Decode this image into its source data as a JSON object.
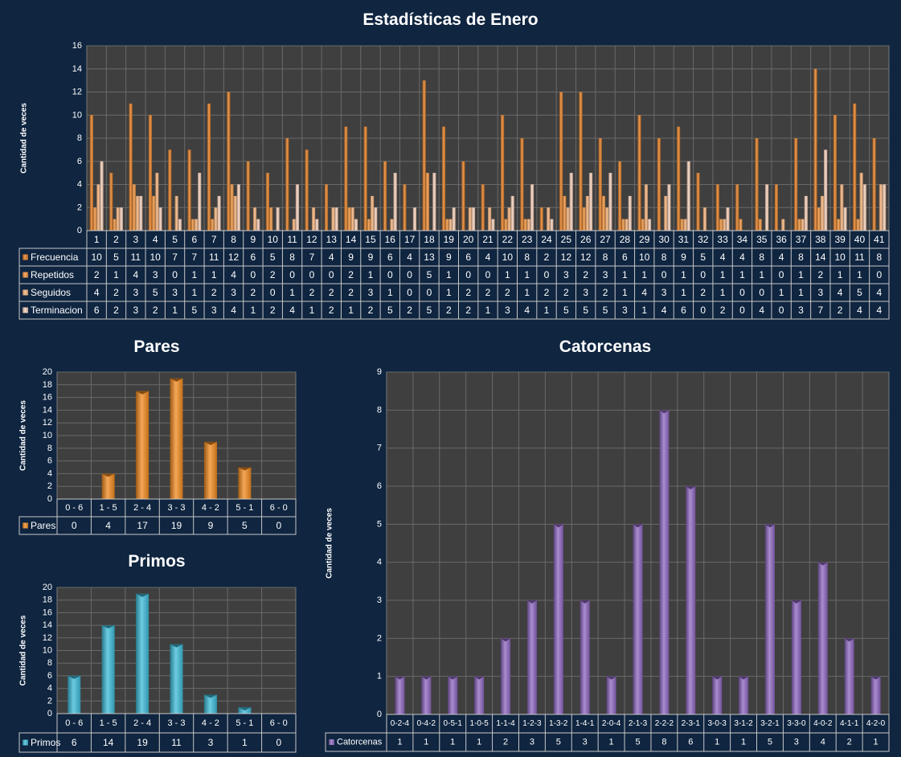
{
  "chart_data": [
    {
      "type": "bar",
      "title": "Estadísticas de Enero",
      "ylabel": "Cantidad de veces",
      "ylim": [
        0,
        16
      ],
      "yticks": [
        0,
        2,
        4,
        6,
        8,
        10,
        12,
        14,
        16
      ],
      "categories": [
        "1",
        "2",
        "3",
        "4",
        "5",
        "6",
        "7",
        "8",
        "9",
        "10",
        "11",
        "12",
        "13",
        "14",
        "15",
        "16",
        "17",
        "18",
        "19",
        "20",
        "21",
        "22",
        "23",
        "24",
        "25",
        "26",
        "27",
        "28",
        "29",
        "30",
        "31",
        "32",
        "33",
        "34",
        "35",
        "36",
        "37",
        "38",
        "39",
        "40",
        "41"
      ],
      "series": [
        {
          "name": "Frecuencia",
          "color": "#e07a1f",
          "values": [
            10,
            5,
            11,
            10,
            7,
            7,
            11,
            12,
            6,
            5,
            8,
            7,
            4,
            9,
            9,
            6,
            4,
            13,
            9,
            6,
            4,
            10,
            8,
            2,
            12,
            12,
            8,
            6,
            10,
            8,
            9,
            5,
            4,
            4,
            8,
            4,
            8,
            14,
            10,
            11,
            8
          ]
        },
        {
          "name": "Repetidos",
          "color": "#f0923a",
          "values": [
            2,
            1,
            4,
            3,
            0,
            1,
            1,
            4,
            0,
            2,
            0,
            0,
            0,
            2,
            1,
            0,
            0,
            5,
            1,
            0,
            0,
            1,
            1,
            0,
            3,
            2,
            3,
            1,
            1,
            0,
            1,
            0,
            1,
            1,
            1,
            0,
            1,
            2,
            1,
            1,
            0
          ]
        },
        {
          "name": "Seguidos",
          "color": "#f6b27a",
          "values": [
            4,
            2,
            3,
            5,
            3,
            1,
            2,
            3,
            2,
            0,
            1,
            2,
            2,
            2,
            3,
            1,
            0,
            0,
            1,
            2,
            2,
            2,
            1,
            2,
            2,
            3,
            2,
            1,
            4,
            3,
            1,
            2,
            1,
            0,
            0,
            1,
            1,
            3,
            4,
            5,
            4
          ]
        },
        {
          "name": "Terminacion",
          "color": "#f7cfb8",
          "values": [
            6,
            2,
            3,
            2,
            1,
            5,
            3,
            4,
            1,
            2,
            4,
            1,
            2,
            1,
            2,
            5,
            2,
            5,
            2,
            2,
            1,
            3,
            4,
            1,
            5,
            5,
            5,
            3,
            1,
            4,
            6,
            0,
            2,
            0,
            4,
            0,
            3,
            7,
            2,
            4,
            4
          ]
        }
      ]
    },
    {
      "type": "bar",
      "title": "Pares",
      "ylabel": "Cantidad de veces",
      "ylim": [
        0,
        20
      ],
      "yticks": [
        0,
        2,
        4,
        6,
        8,
        10,
        12,
        14,
        16,
        18,
        20
      ],
      "categories": [
        "0 - 6",
        "1 - 5",
        "2 - 4",
        "3 - 3",
        "4 - 2",
        "5 - 1",
        "6 - 0"
      ],
      "series": [
        {
          "name": "Pares",
          "color": "#f28a1e",
          "values": [
            0,
            4,
            17,
            19,
            9,
            5,
            0
          ]
        }
      ]
    },
    {
      "type": "bar",
      "title": "Primos",
      "ylabel": "Cantidad de veces",
      "ylim": [
        0,
        20
      ],
      "yticks": [
        0,
        2,
        4,
        6,
        8,
        10,
        12,
        14,
        16,
        18,
        20
      ],
      "categories": [
        "0 - 6",
        "1 - 5",
        "2 - 4",
        "3 - 3",
        "4 - 2",
        "5 - 1",
        "6 - 0"
      ],
      "series": [
        {
          "name": "Primos",
          "color": "#3cbbd8",
          "values": [
            6,
            14,
            19,
            11,
            3,
            1,
            0
          ]
        }
      ]
    },
    {
      "type": "bar",
      "title": "Catorcenas",
      "ylabel": "Cantidad de veces",
      "ylim": [
        0,
        9
      ],
      "yticks": [
        0,
        1,
        2,
        3,
        4,
        5,
        6,
        7,
        8,
        9
      ],
      "categories": [
        "0-2-4",
        "0-4-2",
        "0-5-1",
        "1-0-5",
        "1-1-4",
        "1-2-3",
        "1-3-2",
        "1-4-1",
        "2-0-4",
        "2-1-3",
        "2-2-2",
        "2-3-1",
        "3-0-3",
        "3-1-2",
        "3-2-1",
        "3-3-0",
        "4-0-2",
        "4-1-1",
        "4-2-0"
      ],
      "series": [
        {
          "name": "Catorcenas",
          "color": "#8e66c0",
          "values": [
            1,
            1,
            1,
            1,
            2,
            3,
            5,
            3,
            1,
            5,
            8,
            6,
            1,
            1,
            5,
            3,
            4,
            2,
            1
          ]
        }
      ]
    }
  ],
  "colors": {
    "background": "#0f2540",
    "plot_area": "#3f3f3f",
    "gridline": "#6a6a6a"
  }
}
